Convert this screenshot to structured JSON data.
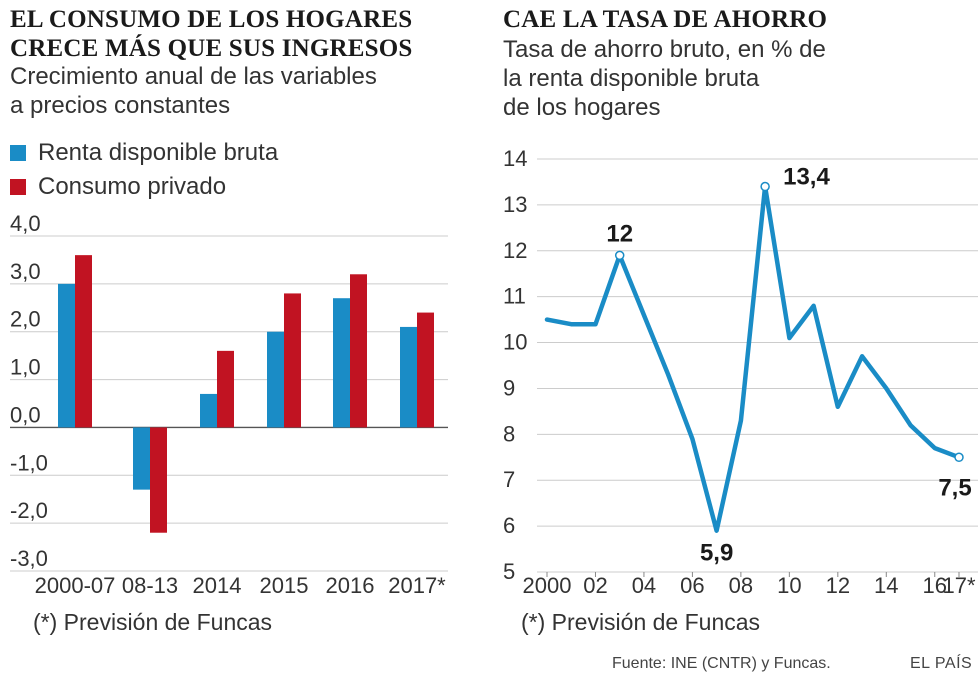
{
  "left": {
    "title_line1": "EL CONSUMO DE LOS HOGARES",
    "title_line2": "CRECE MÁS QUE SUS INGRESOS",
    "subtitle_line1": "Crecimiento anual de las variables",
    "subtitle_line2": "a precios constantes",
    "note": "(*) Previsión de Funcas"
  },
  "right": {
    "title": "CAE LA TASA DE AHORRO",
    "subtitle_line1": "Tasa de ahorro bruto, en % de",
    "subtitle_line2": "la renta disponible bruta",
    "subtitle_line3": "de los hogares",
    "note": "(*) Previsión de Funcas"
  },
  "footer": {
    "source": "Fuente: INE (CNTR) y Funcas.",
    "brand": "EL PAÍS"
  },
  "colors": {
    "renta": "#1A8CC6",
    "consumo": "#C11322",
    "line": "#1A8CC6",
    "grid": "#cccccc"
  },
  "chart_data": [
    {
      "type": "bar",
      "categories": [
        "2000-07",
        "08-13",
        "2014",
        "2015",
        "2016",
        "2017*"
      ],
      "series": [
        {
          "name": "Renta disponible bruta",
          "values": [
            3.0,
            -1.3,
            0.7,
            2.0,
            2.7,
            2.1
          ]
        },
        {
          "name": "Consumo privado",
          "values": [
            3.6,
            -2.2,
            1.6,
            2.8,
            3.2,
            2.4
          ]
        }
      ],
      "ylim": [
        -3.0,
        4.0
      ],
      "yticks": [
        4.0,
        3.0,
        2.0,
        1.0,
        0.0,
        -1.0,
        -2.0,
        -3.0
      ],
      "ytick_labels": [
        "4,0",
        "3,0",
        "2,0",
        "1,0",
        "0,0",
        "-1,0",
        "-2,0",
        "-3,0"
      ],
      "grid": true,
      "legend": "top-left"
    },
    {
      "type": "line",
      "x": [
        2000,
        2001,
        2002,
        2003,
        2004,
        2005,
        2006,
        2007,
        2008,
        2009,
        2010,
        2011,
        2012,
        2013,
        2014,
        2015,
        2016,
        2017
      ],
      "values": [
        10.5,
        10.4,
        10.4,
        11.9,
        10.6,
        9.3,
        7.9,
        5.9,
        8.3,
        13.4,
        10.1,
        10.8,
        8.6,
        9.7,
        9.0,
        8.2,
        7.7,
        7.5
      ],
      "ylim": [
        5,
        14
      ],
      "yticks": [
        14,
        13,
        12,
        11,
        10,
        9,
        8,
        7,
        6,
        5
      ],
      "xtick_values": [
        2000,
        2002,
        2004,
        2006,
        2008,
        2010,
        2012,
        2014,
        2016,
        2017
      ],
      "xtick_labels": [
        "2000",
        "02",
        "04",
        "06",
        "08",
        "10",
        "12",
        "14",
        "16",
        "17*"
      ],
      "annotations": [
        {
          "x": 2003,
          "y": 11.9,
          "label": "12",
          "marker": true
        },
        {
          "x": 2007,
          "y": 5.9,
          "label": "5,9",
          "marker": false
        },
        {
          "x": 2009,
          "y": 13.4,
          "label": "13,4",
          "marker": true
        },
        {
          "x": 2017,
          "y": 7.5,
          "label": "7,5",
          "marker": true
        }
      ],
      "grid": true
    }
  ]
}
